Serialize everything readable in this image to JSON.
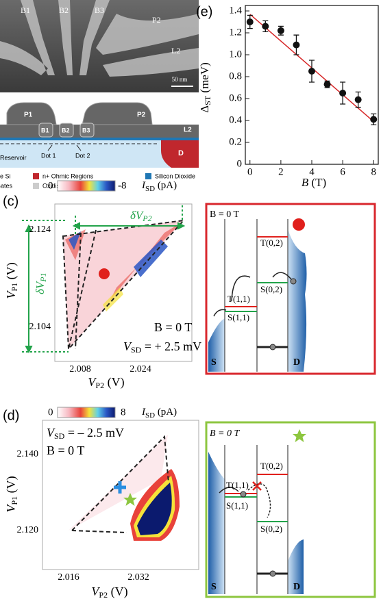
{
  "sem": {
    "labels": [
      "B1",
      "B2",
      "B3",
      "P2",
      "L2"
    ],
    "scale": "50 nm"
  },
  "schematic": {
    "labels": [
      "P1",
      "P2",
      "B1",
      "B2",
      "B3",
      "L2",
      "D",
      "Dot 1",
      "Dot 2",
      "Reservoir"
    ],
    "legend": [
      "e Si",
      "n+ Ohmic Regions",
      "Silicon Dioxide",
      "Gates",
      "Oxidised Aluminium"
    ]
  },
  "panel_c": {
    "label": "(c)",
    "colorbar": {
      "min": "0",
      "max": "-8",
      "quantity": "I",
      "sub": "SD",
      "unit": " (pA)"
    },
    "yticks": [
      "2.124",
      "2.104"
    ],
    "xticks": [
      "2.008",
      "2.024"
    ],
    "ylabel": {
      "main": "V",
      "sub": "P1",
      "unit": " (V)"
    },
    "xlabel": {
      "main": "V",
      "sub": "P2",
      "unit": " (V)"
    },
    "annotations": {
      "field": "B = 0 T",
      "bias": {
        "main": "V",
        "sub": "SD",
        "rest": " = + 2.5 mV"
      },
      "dvp2": {
        "main": "δV",
        "sub": "P2"
      },
      "dvp1": {
        "main": "δV",
        "sub": "P1"
      }
    }
  },
  "diagram_c": {
    "field": "B = 0 T",
    "levels": [
      "T(0,2)",
      "S(0,2)",
      "T(1,1)",
      "S(1,1)"
    ],
    "leads": [
      "S",
      "D"
    ]
  },
  "panel_d": {
    "label": "(d)",
    "colorbar": {
      "min": "0",
      "max": "8",
      "quantity": "I",
      "sub": "SD",
      "unit": " (pA)"
    },
    "yticks": [
      "2.140",
      "2.120"
    ],
    "xticks": [
      "2.016",
      "2.032"
    ],
    "ylabel": {
      "main": "V",
      "sub": "P1",
      "unit": " (V)"
    },
    "xlabel": {
      "main": "V",
      "sub": "P2",
      "unit": " (V)"
    },
    "annotations": {
      "bias": {
        "main": "V",
        "sub": "SD",
        "rest": " = – 2.5 mV"
      },
      "field": "B = 0 T"
    }
  },
  "diagram_d": {
    "field": "B = 0 T",
    "levels": [
      "T(1,1)",
      "S(1,1)",
      "T(0,2)",
      "S(0,2)"
    ],
    "leads": [
      "S",
      "D"
    ]
  },
  "chart_data": {
    "type": "scatter",
    "label": "(e)",
    "x": [
      0,
      1,
      2,
      3,
      4,
      5,
      6,
      7,
      8
    ],
    "values": [
      1.3,
      1.26,
      1.22,
      1.09,
      0.85,
      0.73,
      0.65,
      0.59,
      0.41
    ],
    "errors": [
      0.06,
      0.05,
      0.04,
      0.09,
      0.1,
      0.03,
      0.1,
      0.07,
      0.05
    ],
    "color": "#111111",
    "fit_line": {
      "x": [
        0,
        8
      ],
      "values": [
        1.37,
        0.39
      ],
      "color": "#d62728"
    },
    "xlim": [
      -0.3,
      8.3
    ],
    "ylim": [
      0,
      1.45
    ],
    "xticks": [
      0,
      2,
      4,
      6,
      8
    ],
    "yticks": [
      0,
      0.2,
      0.4,
      0.6,
      0.8,
      {
        "value": 1,
        "label": "1.0"
      },
      1.2,
      1.4
    ],
    "ylabel": {
      "main": "Δ",
      "sub": "ST",
      "unit": " (meV)"
    },
    "xlabel": {
      "main": "B",
      "unit": " (T)"
    }
  }
}
